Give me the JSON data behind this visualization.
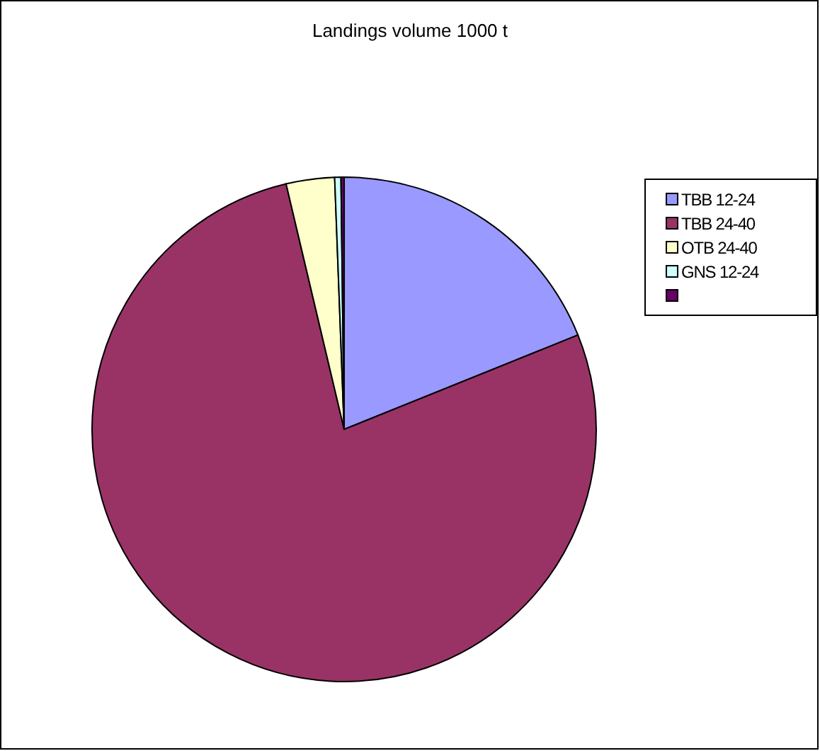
{
  "chart_data": {
    "type": "pie",
    "title": "Landings volume 1000 t",
    "categories": [
      "TBB 12-24",
      "TBB 24-40",
      "OTB 24-40",
      "GNS 12-24",
      null
    ],
    "values": [
      18.9,
      77.4,
      3.1,
      0.4,
      0.2
    ],
    "colors": [
      "#9999ff",
      "#993366",
      "#ffffcc",
      "#ccffff",
      "#660066"
    ],
    "legend": "right"
  }
}
